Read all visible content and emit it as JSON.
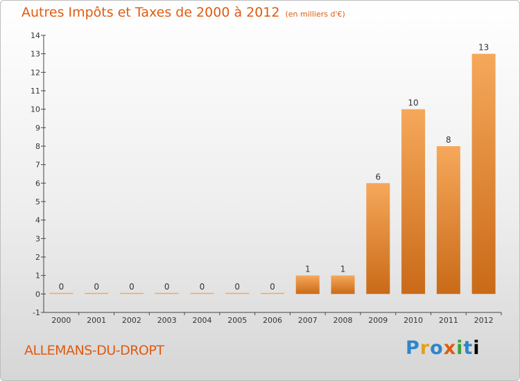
{
  "title": "Autres Impôts et Taxes de 2000 à 2012",
  "unit": "(en milliers d'€)",
  "place": "ALLEMANS-DU-DROPT",
  "logo": "Proxiti",
  "colors": {
    "accent": "#e05a0f",
    "bar_light": "#f6a85a",
    "bar_dark": "#c96a18"
  },
  "chart_data": {
    "type": "bar",
    "categories": [
      "2000",
      "2001",
      "2002",
      "2003",
      "2004",
      "2005",
      "2006",
      "2007",
      "2008",
      "2009",
      "2010",
      "2011",
      "2012"
    ],
    "values": [
      0,
      0,
      0,
      0,
      0,
      0,
      0,
      1,
      1,
      6,
      10,
      8,
      13
    ],
    "data_labels": [
      "0",
      "0",
      "0",
      "0",
      "0",
      "0",
      "0",
      "1",
      "1",
      "6",
      "10",
      "8",
      "13"
    ],
    "ylim": [
      -1,
      14
    ],
    "yticks": [
      -1,
      0,
      1,
      2,
      3,
      4,
      5,
      6,
      7,
      8,
      9,
      10,
      11,
      12,
      13,
      14
    ],
    "ytick_labels": [
      "-1",
      "0",
      "1",
      "2",
      "3",
      "4",
      "5",
      "6",
      "7",
      "8",
      "9",
      "10",
      "11",
      "12",
      "13",
      "14"
    ],
    "grid": false,
    "legend": "none"
  }
}
